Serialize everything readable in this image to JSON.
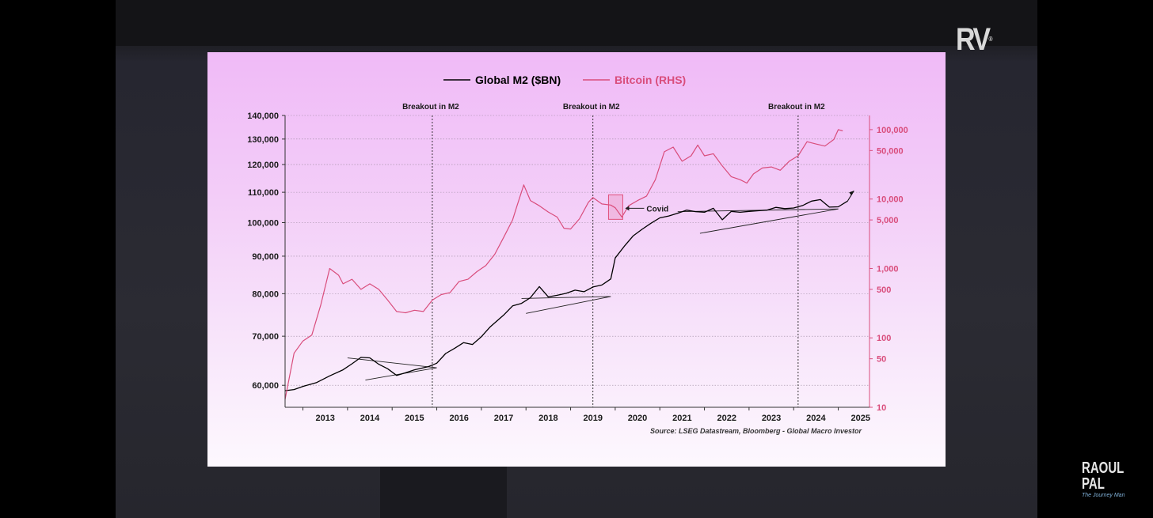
{
  "branding": {
    "logo_text": "RV",
    "logo_reg": "®",
    "name": "RAOUL PAL",
    "tagline": "The Journey Man"
  },
  "chart_data": {
    "type": "line",
    "legend": [
      {
        "name": "Global M2 ($BN)",
        "color": "#000000"
      },
      {
        "name": "Bitcoin (RHS)",
        "color": "#d94d7c"
      }
    ],
    "legend_position": "top",
    "source": "Source: LSEG Datastream, Bloomberg - Global Macro Investor",
    "x_axis": {
      "tick_labels": [
        "2013",
        "2014",
        "2015",
        "2016",
        "2017",
        "2018",
        "2019",
        "2020",
        "2021",
        "2022",
        "2023",
        "2024",
        "2025"
      ],
      "range": [
        2012.6,
        2025.7
      ]
    },
    "y_left": {
      "scale": "log",
      "range": [
        56000,
        140000
      ],
      "ticks": [
        60000,
        70000,
        80000,
        90000,
        100000,
        110000,
        120000,
        130000,
        140000
      ],
      "tick_labels": [
        "60,000",
        "70,000",
        "80,000",
        "90,000",
        "100,000",
        "110,000",
        "120,000",
        "130,000",
        "140,000"
      ]
    },
    "y_right": {
      "scale": "log",
      "range": [
        10,
        160000
      ],
      "ticks": [
        10,
        50,
        100,
        500,
        1000,
        5000,
        10000,
        50000,
        100000
      ],
      "tick_labels": [
        "10",
        "50",
        "100",
        "500",
        "1,000",
        "5,000",
        "10,000",
        "50,000",
        "100,000"
      ],
      "color": "#d94d7c"
    },
    "grid": "horizontal dotted",
    "annotations": [
      {
        "text": "Breakout in M2",
        "x": 2015.9
      },
      {
        "text": "Breakout in M2",
        "x": 2019.5
      },
      {
        "text": "Breakout in M2",
        "x": 2024.1
      },
      {
        "text": "Covid",
        "x": 2020.0
      }
    ],
    "series": [
      {
        "name": "Global M2 ($BN)",
        "axis": "left",
        "x": [
          2012.6,
          2012.8,
          2013.0,
          2013.3,
          2013.6,
          2013.9,
          2014.1,
          2014.3,
          2014.5,
          2014.7,
          2014.9,
          2015.1,
          2015.3,
          2015.5,
          2015.8,
          2016.0,
          2016.2,
          2016.4,
          2016.6,
          2016.8,
          2017.0,
          2017.2,
          2017.5,
          2017.7,
          2017.9,
          2018.1,
          2018.3,
          2018.5,
          2018.7,
          2018.9,
          2019.1,
          2019.3,
          2019.5,
          2019.7,
          2019.9,
          2020.0,
          2020.2,
          2020.4,
          2020.6,
          2020.8,
          2021.0,
          2021.2,
          2021.4,
          2021.6,
          2021.8,
          2022.0,
          2022.2,
          2022.4,
          2022.6,
          2022.8,
          2023.0,
          2023.2,
          2023.4,
          2023.6,
          2023.8,
          2024.0,
          2024.2,
          2024.4,
          2024.6,
          2024.8,
          2025.0,
          2025.2
        ],
        "values": [
          59000,
          59200,
          59800,
          60500,
          61800,
          63000,
          64200,
          65500,
          65400,
          64100,
          63200,
          61900,
          62400,
          63000,
          63600,
          64300,
          66300,
          67400,
          68600,
          68200,
          69900,
          72100,
          74800,
          77000,
          77600,
          79000,
          81800,
          79200,
          79600,
          80100,
          80900,
          80500,
          81700,
          82200,
          83800,
          89500,
          92800,
          95900,
          97900,
          99800,
          101500,
          102100,
          103000,
          104000,
          103500,
          103300,
          104600,
          100900,
          103600,
          103300,
          103600,
          103800,
          104000,
          104900,
          104500,
          104700,
          105500,
          107000,
          107500,
          105000,
          105100,
          106900
        ]
      },
      {
        "name": "Bitcoin (RHS)",
        "axis": "right",
        "x": [
          2012.6,
          2012.8,
          2013.0,
          2013.2,
          2013.4,
          2013.6,
          2013.8,
          2013.9,
          2014.1,
          2014.3,
          2014.5,
          2014.7,
          2014.9,
          2015.1,
          2015.3,
          2015.5,
          2015.7,
          2015.9,
          2016.1,
          2016.3,
          2016.5,
          2016.7,
          2016.9,
          2017.1,
          2017.3,
          2017.5,
          2017.7,
          2017.8,
          2017.95,
          2018.1,
          2018.3,
          2018.5,
          2018.7,
          2018.85,
          2019.0,
          2019.2,
          2019.4,
          2019.5,
          2019.7,
          2019.9,
          2020.0,
          2020.15,
          2020.3,
          2020.5,
          2020.7,
          2020.9,
          2021.1,
          2021.3,
          2021.5,
          2021.7,
          2021.85,
          2022.0,
          2022.2,
          2022.4,
          2022.6,
          2022.8,
          2022.95,
          2023.1,
          2023.3,
          2023.5,
          2023.7,
          2023.9,
          2024.1,
          2024.3,
          2024.5,
          2024.7,
          2024.9,
          2025.0,
          2025.1
        ],
        "values": [
          13,
          60,
          90,
          110,
          300,
          1000,
          800,
          600,
          700,
          500,
          600,
          500,
          350,
          240,
          230,
          250,
          240,
          350,
          420,
          450,
          650,
          700,
          900,
          1100,
          1600,
          2800,
          5000,
          8000,
          16000,
          9500,
          8000,
          6500,
          5500,
          3800,
          3700,
          5200,
          9000,
          10500,
          8500,
          8200,
          7500,
          5500,
          8000,
          9500,
          11000,
          19000,
          48000,
          56000,
          35000,
          42000,
          60000,
          42000,
          45000,
          30000,
          21000,
          19000,
          17000,
          23000,
          28000,
          29000,
          26000,
          35000,
          42000,
          67000,
          62000,
          58000,
          72000,
          100000,
          96000
        ]
      }
    ]
  }
}
